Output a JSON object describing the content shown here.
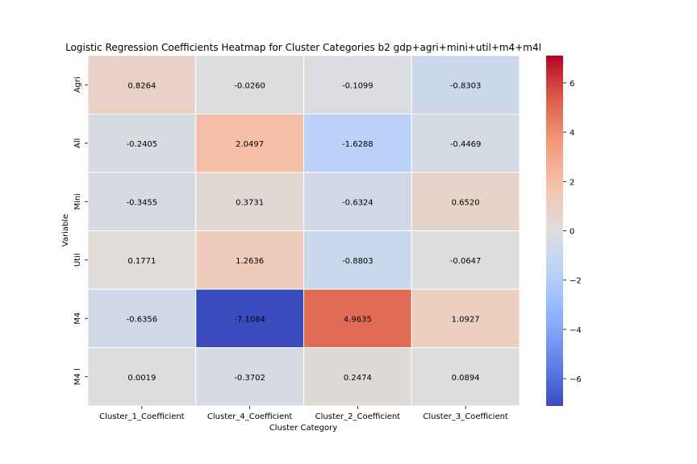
{
  "chart_data": {
    "type": "heatmap",
    "title": "Logistic Regression Coefficients Heatmap for Cluster Categories b2 gdp+agri+mini+util+m4+m4l",
    "xlabel": "Cluster Category",
    "ylabel": "Variable",
    "columns": [
      "Cluster_1_Coefficient",
      "Cluster_4_Coefficient",
      "Cluster_2_Coefficient",
      "Cluster_3_Coefficient"
    ],
    "rows": [
      "Agri",
      "All",
      "Mini",
      "Util",
      "M4",
      "M4 l"
    ],
    "values": [
      [
        0.8264,
        -0.026,
        -0.1099,
        -0.8303
      ],
      [
        -0.2405,
        2.0497,
        -1.6288,
        -0.4469
      ],
      [
        -0.3455,
        0.3731,
        -0.6324,
        0.652
      ],
      [
        0.1771,
        1.2636,
        -0.8803,
        -0.0647
      ],
      [
        -0.6356,
        -7.1084,
        4.9635,
        1.0927
      ],
      [
        0.0019,
        -0.3702,
        0.2474,
        0.0894
      ]
    ],
    "cell_labels": [
      [
        "0.8264",
        "-0.0260",
        "-0.1099",
        "-0.8303"
      ],
      [
        "-0.2405",
        "2.0497",
        "-1.6288",
        "-0.4469"
      ],
      [
        "-0.3455",
        "0.3731",
        "-0.6324",
        "0.6520"
      ],
      [
        "0.1771",
        "1.2636",
        "-0.8803",
        "-0.0647"
      ],
      [
        "-0.6356",
        "-7.1084",
        "4.9635",
        "1.0927"
      ],
      [
        "0.0019",
        "-0.3702",
        "0.2474",
        "0.0894"
      ]
    ],
    "colormap": "coolwarm",
    "vmin": -7.1084,
    "vmax": 7.1084,
    "colorbar_ticks": [
      -6,
      -4,
      -2,
      0,
      2,
      4,
      6
    ],
    "colorbar_tick_labels": [
      "−6",
      "−4",
      "−2",
      "0",
      "2",
      "4",
      "6"
    ],
    "legend_placement": "right",
    "grid": false
  }
}
